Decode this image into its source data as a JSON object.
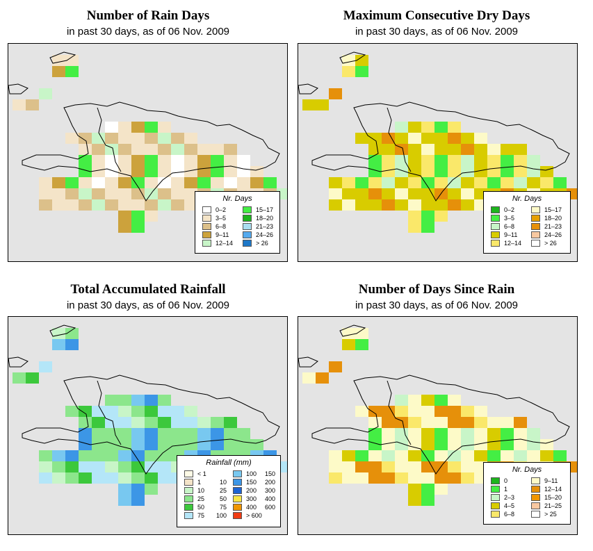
{
  "panels": [
    {
      "id": "rain_days",
      "title": "Number of Rain Days",
      "subtitle": "in past 30 days, as of  06 Nov. 2009",
      "legend": {
        "title": "Nr. Days",
        "items": [
          {
            "label": "0–2",
            "color": "#ffffff"
          },
          {
            "label": "3–5",
            "color": "#f4e4c8"
          },
          {
            "label": "6–8",
            "color": "#dcc08a"
          },
          {
            "label": "9–11",
            "color": "#cca23c"
          },
          {
            "label": "12–14",
            "color": "#c8f5c8"
          },
          {
            "label": "15–17",
            "color": "#44ee44"
          },
          {
            "label": "18–20",
            "color": "#1eb41e"
          },
          {
            "label": "21–23",
            "color": "#aaddf0"
          },
          {
            "label": "24–26",
            "color": "#55aaee"
          },
          {
            "label": "> 26",
            "color": "#1e78c8"
          }
        ]
      },
      "palette": [
        "#f4e4c8",
        "#f4e4c8",
        "#dcc08a",
        "#f4e4c8",
        "#dcc08a",
        "#cca23c",
        "#f4e4c8",
        "#ffffff",
        "#c8f5c8",
        "#44ee44"
      ]
    },
    {
      "id": "dry_days",
      "title": "Maximum Consecutive Dry Days",
      "subtitle": "in past 30 days, as of  06 Nov. 2009",
      "legend": {
        "title": "Nr. Days",
        "items": [
          {
            "label": "0–2",
            "color": "#1eb41e"
          },
          {
            "label": "3–5",
            "color": "#44ee44"
          },
          {
            "label": "6–8",
            "color": "#c8f5c8"
          },
          {
            "label": "9–11",
            "color": "#d8cc00"
          },
          {
            "label": "12–14",
            "color": "#fae86a"
          },
          {
            "label": "15–17",
            "color": "#fdfac8"
          },
          {
            "label": "18–20",
            "color": "#e6a000"
          },
          {
            "label": "21–23",
            "color": "#e6900a"
          },
          {
            "label": "24–26",
            "color": "#f8c8a0"
          },
          {
            "label": "> 26",
            "color": "#ffffff"
          }
        ]
      },
      "palette": [
        "#d8cc00",
        "#d8cc00",
        "#d8cc00",
        "#fae86a",
        "#d8cc00",
        "#fae86a",
        "#fdfac8",
        "#c8f5c8",
        "#e6900a",
        "#44ee44"
      ]
    },
    {
      "id": "rainfall",
      "title": "Total Accumulated Rainfall",
      "subtitle": "in past 30 days, as of  06 Nov. 2009",
      "legend": {
        "title": "Rainfall (mm)",
        "items": [
          {
            "label": "< 1",
            "label2": "",
            "color": "#fdfae6"
          },
          {
            "label": "1",
            "label2": "10",
            "color": "#f4e4c8"
          },
          {
            "label": "10",
            "label2": "25",
            "color": "#c8f5c8"
          },
          {
            "label": "25",
            "label2": "50",
            "color": "#8ce68c"
          },
          {
            "label": "50",
            "label2": "75",
            "color": "#3cc83c"
          },
          {
            "label": "75",
            "label2": "100",
            "color": "#b4e6f8"
          },
          {
            "label": "100",
            "label2": "150",
            "color": "#78c8f0"
          },
          {
            "label": "150",
            "label2": "200",
            "color": "#3c96e6"
          },
          {
            "label": "200",
            "label2": "300",
            "color": "#1e64d2"
          },
          {
            "label": "300",
            "label2": "400",
            "color": "#fae646"
          },
          {
            "label": "400",
            "label2": "600",
            "color": "#f09600"
          },
          {
            "label": "> 600",
            "label2": "",
            "color": "#f03c14"
          }
        ]
      },
      "palette": [
        "#8ce68c",
        "#8ce68c",
        "#b4e6f8",
        "#8ce68c",
        "#3cc83c",
        "#78c8f0",
        "#c8f5c8",
        "#8ce68c",
        "#b4e6f8",
        "#3c96e6"
      ]
    },
    {
      "id": "since_rain",
      "title": "Number of Days Since Rain",
      "subtitle": "in past 30 days, as of  06 Nov. 2009",
      "legend": {
        "title": "Nr. Days",
        "items": [
          {
            "label": "0",
            "color": "#1eb41e"
          },
          {
            "label": "1",
            "color": "#44ee44"
          },
          {
            "label": "2–3",
            "color": "#c8f5c8"
          },
          {
            "label": "4–5",
            "color": "#d8cc00"
          },
          {
            "label": "6–8",
            "color": "#fae86a"
          },
          {
            "label": "9–11",
            "color": "#fdfac8"
          },
          {
            "label": "12–14",
            "color": "#e6900a"
          },
          {
            "label": "15–20",
            "color": "#f09600"
          },
          {
            "label": "21–25",
            "color": "#f8c8a0"
          },
          {
            "label": "> 25",
            "color": "#ffffff"
          }
        ]
      },
      "palette": [
        "#fdfac8",
        "#fdfac8",
        "#fae86a",
        "#fdfac8",
        "#e6900a",
        "#d8cc00",
        "#fdfac8",
        "#c8f5c8",
        "#e6900a",
        "#44ee44"
      ]
    }
  ]
}
